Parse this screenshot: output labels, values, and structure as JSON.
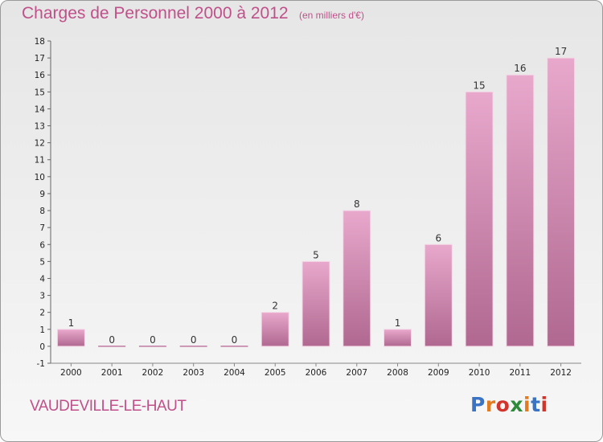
{
  "header": {
    "title": "Charges de Personnel 2000 à 2012",
    "subtitle": "(en milliers d'€)"
  },
  "footer": {
    "location": "VAUDEVILLE-LE-HAUT",
    "logo": "Proxiti"
  },
  "colors": {
    "title": "#c0508a",
    "bar_top": "#e8a8cc",
    "bar_bottom": "#b06890",
    "logo_letters": [
      "#3a73c4",
      "#e07b1f",
      "#d2342c",
      "#2e8b3a",
      "#e07b1f",
      "#3a73c4",
      "#d2342c"
    ]
  },
  "chart_data": {
    "type": "bar",
    "categories": [
      "2000",
      "2001",
      "2002",
      "2003",
      "2004",
      "2005",
      "2006",
      "2007",
      "2008",
      "2009",
      "2010",
      "2011",
      "2012"
    ],
    "values": [
      1,
      0,
      0,
      0,
      0,
      2,
      5,
      8,
      1,
      6,
      15,
      16,
      17
    ],
    "title": "Charges de Personnel 2000 à 2012",
    "subtitle": "(en milliers d'€)",
    "xlabel": "",
    "ylabel": "",
    "ylim": [
      -1,
      18
    ],
    "yticks": [
      "-1",
      "0",
      "1",
      "2",
      "3",
      "4",
      "5",
      "6",
      "7",
      "8",
      "9",
      "10",
      "11",
      "12",
      "13",
      "14",
      "15",
      "16",
      "17",
      "18"
    ],
    "grid": false,
    "legend": "none"
  }
}
